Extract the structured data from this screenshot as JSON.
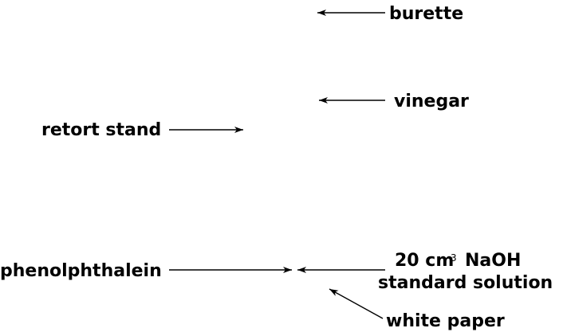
{
  "labels": {
    "burette": "burette",
    "vinegar": "vinegar",
    "retort_stand": "retort stand",
    "phenolphthalein": "phenolphthalein",
    "naoh_amount": "20 cm",
    "naoh_superscript": "3",
    "naoh_name": "NaOH",
    "standard_solution": "standard solution",
    "white_paper": "white paper"
  },
  "colors": {
    "ink": "#000000",
    "background": "#ffffff"
  }
}
